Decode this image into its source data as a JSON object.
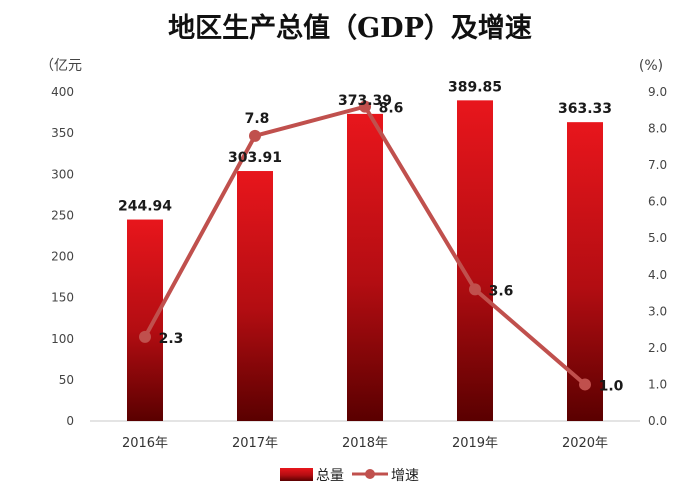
{
  "chart_data": {
    "type": "bar",
    "title": "地区生产总值（GDP）及增速",
    "categories": [
      "2016年",
      "2017年",
      "2018年",
      "2019年",
      "2020年"
    ],
    "series": [
      {
        "name": "总量",
        "type": "bar",
        "axis": "left",
        "values": [
          244.94,
          303.91,
          373.39,
          389.85,
          363.33
        ],
        "labels": [
          "244.94",
          "303.91",
          "373.39",
          "389.85",
          "363.33"
        ]
      },
      {
        "name": "增速",
        "type": "line",
        "axis": "right",
        "values": [
          2.3,
          7.8,
          8.6,
          3.6,
          1.0
        ],
        "labels": [
          "2.3",
          "7.8",
          "8.6",
          "3.6",
          "1.0"
        ]
      }
    ],
    "y_left": {
      "unit": "（亿元",
      "ylim": [
        0,
        400
      ],
      "ticks": [
        "0",
        "50",
        "100",
        "150",
        "200",
        "250",
        "300",
        "350",
        "400"
      ]
    },
    "y_right": {
      "unit": "(%)",
      "ylim": [
        0,
        9
      ],
      "ticks": [
        "0.0",
        "1.0",
        "2.0",
        "3.0",
        "4.0",
        "5.0",
        "6.0",
        "7.0",
        "8.0",
        "9.0"
      ]
    },
    "grid": false,
    "legend": "bottom"
  },
  "colors": {
    "bar_top": "#e8161c",
    "bar_bottom": "#5a0000",
    "line": "#c0504d"
  }
}
